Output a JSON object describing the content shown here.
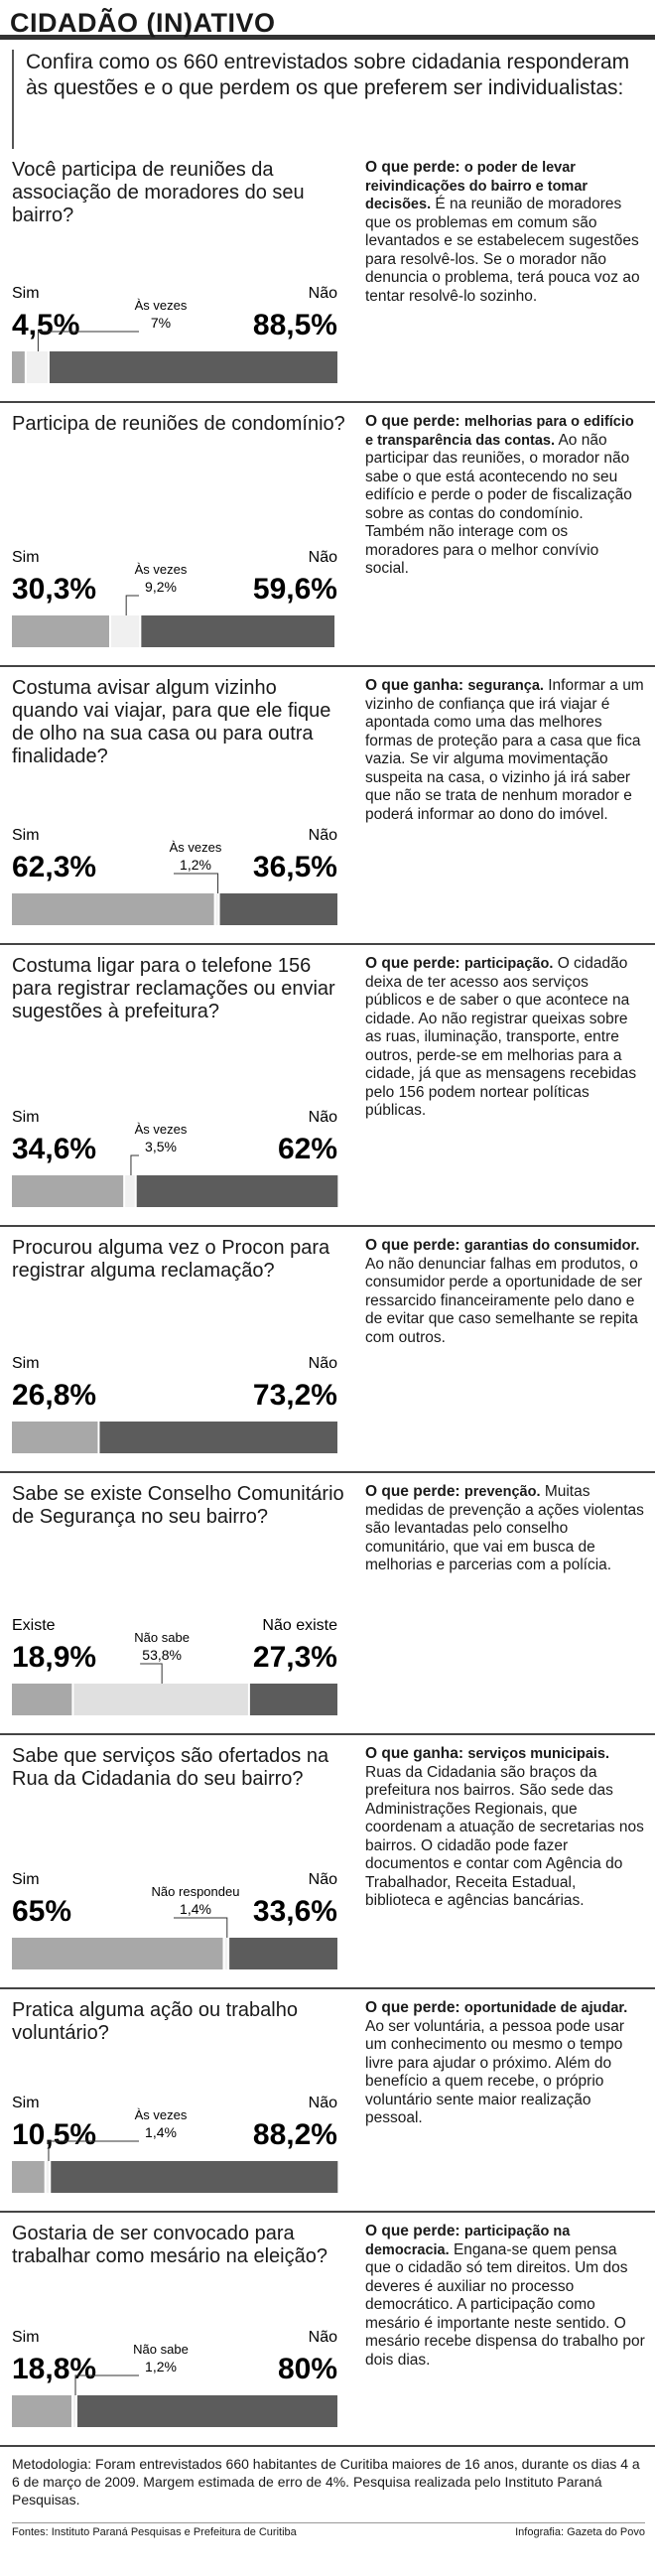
{
  "header": {
    "title": "CIDADÃO (IN)ATIVO",
    "intro": "Confira como os 660 entrevistados sobre cidadania responderam às questões e o que perdem os que preferem ser individualistas:"
  },
  "questions": [
    {
      "question": "Você participa de reuniões da associação de moradores do seu bairro?",
      "labels": [
        "Sim",
        "Às vezes",
        "Não"
      ],
      "values": [
        4.5,
        7,
        88.5
      ],
      "value_labels": [
        "4,5%",
        "7%",
        "88,5%"
      ],
      "colors": [
        "#a8a8a8",
        "#f0f0f0",
        "#5c5c5c"
      ],
      "kind": "O que perde:",
      "heading": "o poder de levar reivindicações do bairro e tomar decisões.",
      "body": "É na reunião de moradores que os problemas em comum são levantados e se estabelecem sugestões para resolvê-los. Se o morador não denuncia o problema, terá pouca voz ao tentar resolvê-lo sozinho."
    },
    {
      "question": "Participa de reuniões de condomínio?",
      "labels": [
        "Sim",
        "Às vezes",
        "Não"
      ],
      "values": [
        30.3,
        9.2,
        59.6
      ],
      "value_labels": [
        "30,3%",
        "9,2%",
        "59,6%"
      ],
      "colors": [
        "#a8a8a8",
        "#f0f0f0",
        "#5c5c5c"
      ],
      "kind": "O que perde:",
      "heading": "melhorias para o edifício e transparência das contas.",
      "body": "Ao não participar das reuniões, o morador não sabe o que está acontecendo no seu edifício e perde o poder de fiscalização sobre as contas do condomínio. Também não interage com os moradores para o melhor convívio social."
    },
    {
      "question": "Costuma avisar algum vizinho quando vai viajar, para que ele fique de olho na sua casa ou para outra finalidade?",
      "labels": [
        "Sim",
        "Às vezes",
        "Não"
      ],
      "values": [
        62.3,
        1.2,
        36.5
      ],
      "value_labels": [
        "62,3%",
        "1,2%",
        "36,5%"
      ],
      "colors": [
        "#a8a8a8",
        "#f0f0f0",
        "#5c5c5c"
      ],
      "kind": "O que ganha:",
      "heading": "segurança.",
      "body": "Informar a um vizinho de confiança que irá viajar é apontada como uma das melhores formas de proteção para a casa que fica vazia. Se vir alguma movimentação suspeita na casa, o vizinho já irá saber que não se trata de nenhum morador e poderá informar ao dono do imóvel."
    },
    {
      "question": "Costuma ligar para o telefone 156 para registrar reclamações ou enviar sugestões à prefeitura?",
      "labels": [
        "Sim",
        "Às vezes",
        "Não"
      ],
      "values": [
        34.6,
        3.5,
        62
      ],
      "value_labels": [
        "34,6%",
        "3,5%",
        "62%"
      ],
      "colors": [
        "#a8a8a8",
        "#f0f0f0",
        "#5c5c5c"
      ],
      "kind": "O que perde:",
      "heading": "participação.",
      "body": "O cidadão deixa de ter acesso aos serviços públicos e de saber o que acontece na cidade. Ao não registrar queixas sobre as ruas, iluminação, transporte, entre outros, perde-se em melhorias para a cidade, já que as mensagens recebidas pelo 156 podem nortear políticas públicas."
    },
    {
      "question": "Procurou alguma vez o Procon para registrar alguma reclamação?",
      "labels": [
        "Sim",
        "Não"
      ],
      "values": [
        26.8,
        73.2
      ],
      "value_labels": [
        "26,8%",
        "73,2%"
      ],
      "colors": [
        "#a8a8a8",
        "#5c5c5c"
      ],
      "kind": "O que perde:",
      "heading": "garantias do consumidor.",
      "body": "Ao não denunciar falhas em produtos, o consumidor perde a oportunidade de ser ressarcido financeiramente pelo dano e de evitar que caso semelhante se repita com outros."
    },
    {
      "question": "Sabe se existe Conselho Comunitário de Segurança no seu bairro?",
      "labels": [
        "Existe",
        "Não sabe",
        "Não existe"
      ],
      "values": [
        18.9,
        53.8,
        27.3
      ],
      "value_labels": [
        "18,9%",
        "53,8%",
        "27,3%"
      ],
      "colors": [
        "#a8a8a8",
        "#e0e0e0",
        "#5c5c5c"
      ],
      "kind": "O que perde:",
      "heading": "prevenção.",
      "body": "Muitas medidas de prevenção a ações violentas são levantadas pelo conselho comunitário, que vai em busca de melhorias e parcerias com a polícia."
    },
    {
      "question": "Sabe que serviços são ofertados na Rua da Cidadania do seu bairro?",
      "labels": [
        "Sim",
        "Não respondeu",
        "Não"
      ],
      "values": [
        65,
        1.4,
        33.6
      ],
      "value_labels": [
        "65%",
        "1,4%",
        "33,6%"
      ],
      "colors": [
        "#a8a8a8",
        "#f0f0f0",
        "#5c5c5c"
      ],
      "kind": "O que ganha:",
      "heading": "serviços municipais.",
      "body": "Ruas da Cidadania são braços da prefeitura nos bairros. São sede das Administrações Regionais, que coordenam a atuação de secretarias nos bairros. O cidadão pode fazer documentos e contar com Agência do Trabalhador, Receita Estadual, biblioteca e agências bancárias."
    },
    {
      "question": "Pratica alguma ação ou trabalho voluntário?",
      "labels": [
        "Sim",
        "Às vezes",
        "Não"
      ],
      "values": [
        10.5,
        1.4,
        88.2
      ],
      "value_labels": [
        "10,5%",
        "1,4%",
        "88,2%"
      ],
      "colors": [
        "#a8a8a8",
        "#f0f0f0",
        "#5c5c5c"
      ],
      "kind": "O que perde:",
      "heading": "oportunidade de ajudar.",
      "body": "Ao ser voluntária, a pessoa pode usar um conhecimento ou mesmo o tempo livre para ajudar o próximo. Além do benefício a quem recebe, o próprio voluntário sente maior realização pessoal."
    },
    {
      "question": "Gostaria de ser convocado para trabalhar como mesário na eleição?",
      "labels": [
        "Sim",
        "Não sabe",
        "Não"
      ],
      "values": [
        18.8,
        1.2,
        80
      ],
      "value_labels": [
        "18,8%",
        "1,2%",
        "80%"
      ],
      "colors": [
        "#a8a8a8",
        "#f0f0f0",
        "#5c5c5c"
      ],
      "kind": "O que perde:",
      "heading": "participação na democracia.",
      "body": "Engana-se quem pensa que o cidadão só tem direitos. Um dos deveres é auxiliar no processo democrático. A participação como mesário é importante neste sentido. O mesário recebe dispensa do trabalho por dois dias."
    }
  ],
  "footer": {
    "methodology": "Metodologia: Foram entrevistados 660 habitantes de Curitiba maiores de 16 anos, durante os dias 4 a 6 de março de 2009. Margem estimada de erro de 4%. Pesquisa realizada pelo Instituto Paraná Pesquisas.",
    "sources": "Fontes: Instituto Paraná Pesquisas e Prefeitura de Curitiba",
    "credit": "Infografia: Gazeta do Povo"
  }
}
